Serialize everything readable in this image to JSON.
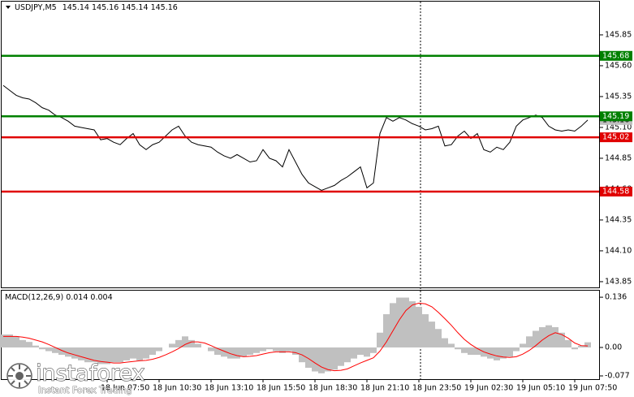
{
  "chart_data": [
    {
      "type": "line",
      "header": {
        "symbol": "USDJPY,M5",
        "open": 145.14,
        "high": 145.16,
        "low": 145.14,
        "close": 145.16
      },
      "series": [
        {
          "color": "#000000",
          "values": [
            145.44,
            145.4,
            145.36,
            145.34,
            145.33,
            145.3,
            145.26,
            145.24,
            145.2,
            145.18,
            145.15,
            145.11,
            145.1,
            145.09,
            145.08,
            145.0,
            145.01,
            144.98,
            144.96,
            145.01,
            145.05,
            144.96,
            144.92,
            144.96,
            144.98,
            145.03,
            145.08,
            145.11,
            145.03,
            144.98,
            144.96,
            144.95,
            144.94,
            144.9,
            144.87,
            144.85,
            144.88,
            144.85,
            144.82,
            144.83,
            144.92,
            144.85,
            144.83,
            144.78,
            144.92,
            144.82,
            144.72,
            144.65,
            144.62,
            144.59,
            144.61,
            144.63,
            144.67,
            144.7,
            144.74,
            144.78,
            144.61,
            144.65,
            145.05,
            145.18,
            145.15,
            145.18,
            145.16,
            145.13,
            145.11,
            145.08,
            145.09,
            145.11,
            144.95,
            144.96,
            145.03,
            145.07,
            145.01,
            145.05,
            144.92,
            144.9,
            144.94,
            144.92,
            144.98,
            145.11,
            145.16,
            145.18,
            145.2,
            145.18,
            145.11,
            145.08,
            145.07,
            145.08,
            145.07,
            145.11,
            145.16
          ]
        }
      ],
      "levels": [
        {
          "value": 145.68,
          "color": "#008000"
        },
        {
          "value": 145.19,
          "color": "#008000"
        },
        {
          "value": 145.02,
          "color": "#e00000"
        },
        {
          "value": 144.58,
          "color": "#e00000"
        }
      ],
      "last_price": 145.16,
      "ylim": [
        143.797,
        146.126
      ],
      "yticks": [
        145.85,
        {
          "value": 145.6,
          "label": "145.60"
        },
        145.35,
        {
          "value": 145.1,
          "label": "145.10"
        },
        144.85,
        {
          "value": 144.6,
          "label": "144.60"
        },
        144.35,
        {
          "value": 144.1,
          "label": "144.10"
        },
        143.85
      ]
    },
    {
      "type": "macd",
      "title": "MACD(12,26,9)",
      "categories": [
        null,
        null,
        null,
        null,
        null,
        null,
        null,
        null,
        null,
        null,
        null,
        null,
        null,
        null,
        null,
        null,
        "18 Jun 07:50",
        null,
        null,
        null,
        null,
        null,
        null,
        null,
        "18 Jun 10:30",
        null,
        null,
        null,
        null,
        null,
        null,
        null,
        "18 Jun 13:10",
        null,
        null,
        null,
        null,
        null,
        null,
        null,
        "18 Jun 15:50",
        null,
        null,
        null,
        null,
        null,
        null,
        null,
        "18 Jun 18:30",
        null,
        null,
        null,
        null,
        null,
        null,
        null,
        "18 Jun 21:10",
        null,
        null,
        null,
        null,
        null,
        null,
        null,
        "18 Jun 23:50",
        null,
        null,
        null,
        null,
        null,
        null,
        null,
        "19 Jun 02:30",
        null,
        null,
        null,
        null,
        null,
        null,
        null,
        "19 Jun 05:10",
        null,
        null,
        null,
        null,
        null,
        null,
        null,
        "19 Jun 07:50",
        null,
        null
      ],
      "series": [
        {
          "color": "#c0c0c0",
          "values": [
            0.035,
            0.035,
            0.03,
            0.02,
            0.015,
            0.005,
            -0.005,
            -0.01,
            -0.015,
            -0.02,
            -0.025,
            -0.03,
            -0.035,
            -0.04,
            -0.04,
            -0.045,
            -0.045,
            -0.04,
            -0.04,
            -0.035,
            -0.03,
            -0.035,
            -0.03,
            -0.02,
            -0.01,
            0.0,
            0.01,
            0.02,
            0.03,
            0.02,
            0.01,
            0.0,
            -0.01,
            -0.02,
            -0.025,
            -0.03,
            -0.03,
            -0.025,
            -0.02,
            -0.015,
            -0.01,
            -0.005,
            -0.01,
            -0.015,
            -0.01,
            -0.02,
            -0.04,
            -0.055,
            -0.065,
            -0.07,
            -0.065,
            -0.06,
            -0.05,
            -0.04,
            -0.03,
            -0.02,
            -0.025,
            -0.015,
            0.04,
            0.09,
            0.12,
            0.135,
            0.135,
            0.125,
            0.11,
            0.09,
            0.07,
            0.05,
            0.025,
            0.01,
            -0.005,
            -0.015,
            -0.02,
            -0.02,
            -0.025,
            -0.03,
            -0.035,
            -0.03,
            -0.025,
            -0.01,
            0.01,
            0.03,
            0.045,
            0.055,
            0.06,
            0.055,
            0.04,
            0.02,
            -0.005,
            0.005,
            0.014
          ]
        },
        {
          "color": "#ff0000",
          "values": [
            0.03,
            0.03,
            0.03,
            0.028,
            0.025,
            0.02,
            0.015,
            0.008,
            0.0,
            -0.008,
            -0.015,
            -0.02,
            -0.025,
            -0.03,
            -0.035,
            -0.038,
            -0.04,
            -0.042,
            -0.042,
            -0.04,
            -0.038,
            -0.036,
            -0.035,
            -0.032,
            -0.027,
            -0.02,
            -0.012,
            -0.003,
            0.008,
            0.015,
            0.015,
            0.012,
            0.005,
            -0.003,
            -0.01,
            -0.017,
            -0.022,
            -0.025,
            -0.024,
            -0.022,
            -0.018,
            -0.014,
            -0.012,
            -0.012,
            -0.012,
            -0.014,
            -0.02,
            -0.03,
            -0.042,
            -0.053,
            -0.06,
            -0.063,
            -0.062,
            -0.058,
            -0.05,
            -0.042,
            -0.035,
            -0.028,
            -0.01,
            0.015,
            0.045,
            0.075,
            0.1,
            0.115,
            0.12,
            0.118,
            0.11,
            0.095,
            0.078,
            0.06,
            0.04,
            0.022,
            0.008,
            -0.003,
            -0.012,
            -0.018,
            -0.023,
            -0.026,
            -0.027,
            -0.025,
            -0.018,
            -0.008,
            0.005,
            0.02,
            0.032,
            0.04,
            0.035,
            0.025,
            0.012,
            0.005,
            0.004
          ]
        }
      ],
      "ylim": [
        -0.088,
        0.156
      ],
      "yticks": [
        0.136,
        {
          "value": 0,
          "label": "0.00"
        },
        -0.077
      ]
    }
  ],
  "watermark": {
    "brand": "instaforex",
    "slogan": "Instant Forex Trading"
  }
}
